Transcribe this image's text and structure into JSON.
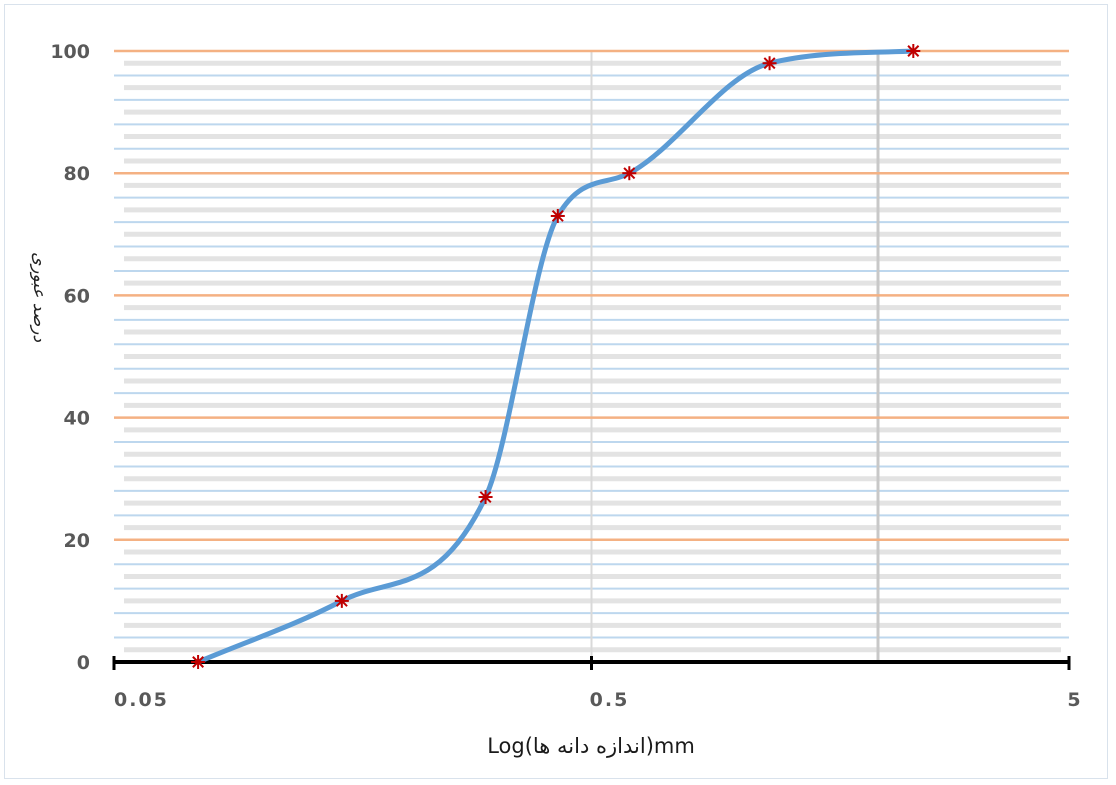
{
  "chart_data": {
    "type": "line",
    "title": "",
    "xlabel": "Log(اندازه دانه ها)mm",
    "ylabel": "درصد عبوری",
    "x_scale": "log",
    "xlim": [
      0.05,
      5
    ],
    "ylim": [
      0,
      100
    ],
    "x_ticks": [
      {
        "value": 0.05,
        "label": "0.05"
      },
      {
        "value": 0.5,
        "label": "0.5"
      },
      {
        "value": 5,
        "label": "5"
      }
    ],
    "y_ticks": [
      0,
      20,
      40,
      60,
      80,
      100
    ],
    "series": [
      {
        "x": [
          0.075,
          0.15,
          0.3,
          0.425,
          0.6,
          1.18,
          2.36
        ],
        "y": [
          0,
          10,
          27,
          73,
          80,
          98,
          100
        ]
      }
    ],
    "grid": true,
    "legend": "none",
    "colors": {
      "curve": "#5b9bd5",
      "markers": "#c00000",
      "major_grid": "#f4b183",
      "minor_grid": "#bdd7ee",
      "axis": "#000000"
    }
  }
}
